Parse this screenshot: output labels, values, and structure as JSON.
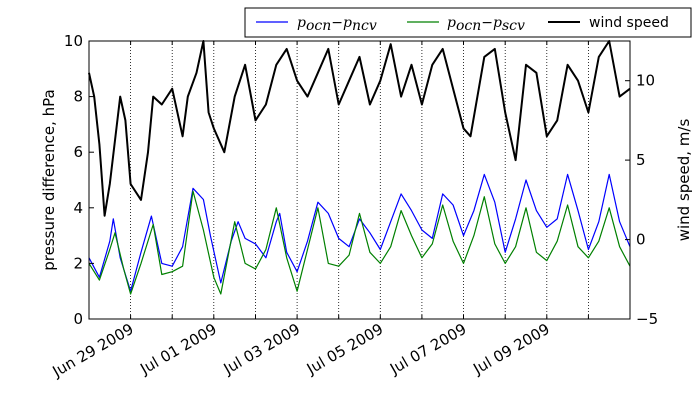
{
  "chart_data": {
    "type": "line",
    "xlim": [
      "2009-06-28T00:00",
      "2009-07-11T00:00"
    ],
    "x_ticks": [
      {
        "date": "2009-06-29",
        "label": "Jun 29 2009"
      },
      {
        "date": "2009-07-01",
        "label": "Jul 01 2009"
      },
      {
        "date": "2009-07-03",
        "label": "Jul 03 2009"
      },
      {
        "date": "2009-07-05",
        "label": "Jul 05 2009"
      },
      {
        "date": "2009-07-07",
        "label": "Jul 07 2009"
      },
      {
        "date": "2009-07-09",
        "label": "Jul 09 2009"
      }
    ],
    "x_gridlines_dates": [
      "2009-06-29",
      "2009-06-30",
      "2009-07-01",
      "2009-07-02",
      "2009-07-03",
      "2009-07-04",
      "2009-07-05",
      "2009-07-06",
      "2009-07-07",
      "2009-07-08",
      "2009-07-09",
      "2009-07-10"
    ],
    "left_axis": {
      "label": "pressure difference, hPa",
      "ylim": [
        0,
        10
      ],
      "ticks": [
        0,
        2,
        4,
        6,
        8,
        10
      ]
    },
    "right_axis": {
      "label": "wind speed, m/s",
      "ylim": [
        -5,
        12.5
      ],
      "ticks": [
        -5,
        0,
        5,
        10
      ]
    },
    "legend": {
      "placement": "top, above plot",
      "entries": [
        "p_ocn − p_ncv",
        "p_ocn − p_scv",
        "wind speed"
      ]
    },
    "series": [
      {
        "name": "p_ocn − p_ncv",
        "legend_main": "p",
        "legend_sub1": "ocn",
        "legend_minus": "−",
        "legend_sub2": "ncv",
        "axis": "left",
        "color": "#0000ff",
        "points": [
          [
            "2009-06-28T00:00",
            2.2
          ],
          [
            "2009-06-28T06:00",
            1.5
          ],
          [
            "2009-06-28T12:00",
            2.8
          ],
          [
            "2009-06-28T14:00",
            3.6
          ],
          [
            "2009-06-28T18:00",
            2.2
          ],
          [
            "2009-06-29T00:00",
            1.0
          ],
          [
            "2009-06-29T06:00",
            2.4
          ],
          [
            "2009-06-29T12:00",
            3.7
          ],
          [
            "2009-06-29T18:00",
            2.0
          ],
          [
            "2009-06-30T00:00",
            1.9
          ],
          [
            "2009-06-30T06:00",
            2.6
          ],
          [
            "2009-06-30T12:00",
            4.7
          ],
          [
            "2009-06-30T18:00",
            4.3
          ],
          [
            "2009-06-30T22:00",
            3.0
          ],
          [
            "2009-07-01T04:00",
            1.3
          ],
          [
            "2009-07-01T10:00",
            2.8
          ],
          [
            "2009-07-01T14:00",
            3.5
          ],
          [
            "2009-07-01T18:00",
            2.9
          ],
          [
            "2009-07-02T00:00",
            2.7
          ],
          [
            "2009-07-02T06:00",
            2.2
          ],
          [
            "2009-07-02T12:00",
            3.5
          ],
          [
            "2009-07-02T14:00",
            3.8
          ],
          [
            "2009-07-02T18:00",
            2.4
          ],
          [
            "2009-07-03T00:00",
            1.7
          ],
          [
            "2009-07-03T06:00",
            2.8
          ],
          [
            "2009-07-03T12:00",
            4.2
          ],
          [
            "2009-07-03T18:00",
            3.8
          ],
          [
            "2009-07-04T00:00",
            2.9
          ],
          [
            "2009-07-04T06:00",
            2.6
          ],
          [
            "2009-07-04T12:00",
            3.6
          ],
          [
            "2009-07-04T18:00",
            3.1
          ],
          [
            "2009-07-05T00:00",
            2.5
          ],
          [
            "2009-07-05T06:00",
            3.5
          ],
          [
            "2009-07-05T12:00",
            4.5
          ],
          [
            "2009-07-05T18:00",
            3.9
          ],
          [
            "2009-07-06T00:00",
            3.2
          ],
          [
            "2009-07-06T06:00",
            2.9
          ],
          [
            "2009-07-06T12:00",
            4.5
          ],
          [
            "2009-07-06T18:00",
            4.1
          ],
          [
            "2009-07-07T00:00",
            3.0
          ],
          [
            "2009-07-07T06:00",
            3.9
          ],
          [
            "2009-07-07T12:00",
            5.2
          ],
          [
            "2009-07-07T18:00",
            4.2
          ],
          [
            "2009-07-08T00:00",
            2.4
          ],
          [
            "2009-07-08T06:00",
            3.6
          ],
          [
            "2009-07-08T12:00",
            5.0
          ],
          [
            "2009-07-08T18:00",
            3.9
          ],
          [
            "2009-07-09T00:00",
            3.3
          ],
          [
            "2009-07-09T06:00",
            3.6
          ],
          [
            "2009-07-09T12:00",
            5.2
          ],
          [
            "2009-07-09T18:00",
            3.9
          ],
          [
            "2009-07-10T00:00",
            2.5
          ],
          [
            "2009-07-10T06:00",
            3.5
          ],
          [
            "2009-07-10T12:00",
            5.2
          ],
          [
            "2009-07-10T18:00",
            3.5
          ],
          [
            "2009-07-11T00:00",
            2.6
          ]
        ]
      },
      {
        "name": "p_ocn − p_scv",
        "legend_main": "p",
        "legend_sub1": "ocn",
        "legend_minus": "−",
        "legend_sub2": "scv",
        "axis": "left",
        "color": "#008000",
        "points": [
          [
            "2009-06-28T00:00",
            2.0
          ],
          [
            "2009-06-28T06:00",
            1.4
          ],
          [
            "2009-06-28T12:00",
            2.5
          ],
          [
            "2009-06-28T15:00",
            3.1
          ],
          [
            "2009-06-28T20:00",
            1.8
          ],
          [
            "2009-06-29T00:00",
            0.9
          ],
          [
            "2009-06-29T06:00",
            2.0
          ],
          [
            "2009-06-29T13:00",
            3.4
          ],
          [
            "2009-06-29T18:00",
            1.6
          ],
          [
            "2009-06-30T00:00",
            1.7
          ],
          [
            "2009-06-30T06:00",
            1.9
          ],
          [
            "2009-06-30T12:00",
            4.6
          ],
          [
            "2009-06-30T18:00",
            3.2
          ],
          [
            "2009-07-01T00:00",
            1.5
          ],
          [
            "2009-07-01T04:00",
            0.9
          ],
          [
            "2009-07-01T12:00",
            3.5
          ],
          [
            "2009-07-01T18:00",
            2.0
          ],
          [
            "2009-07-02T00:00",
            1.8
          ],
          [
            "2009-07-02T06:00",
            2.5
          ],
          [
            "2009-07-02T12:00",
            4.0
          ],
          [
            "2009-07-02T18:00",
            2.2
          ],
          [
            "2009-07-03T00:00",
            1.0
          ],
          [
            "2009-07-03T06:00",
            2.5
          ],
          [
            "2009-07-03T12:00",
            4.0
          ],
          [
            "2009-07-03T18:00",
            2.0
          ],
          [
            "2009-07-04T00:00",
            1.9
          ],
          [
            "2009-07-04T06:00",
            2.3
          ],
          [
            "2009-07-04T12:00",
            3.8
          ],
          [
            "2009-07-04T18:00",
            2.4
          ],
          [
            "2009-07-05T00:00",
            2.0
          ],
          [
            "2009-07-05T06:00",
            2.6
          ],
          [
            "2009-07-05T12:00",
            3.9
          ],
          [
            "2009-07-05T18:00",
            3.0
          ],
          [
            "2009-07-06T00:00",
            2.2
          ],
          [
            "2009-07-06T06:00",
            2.7
          ],
          [
            "2009-07-06T12:00",
            4.1
          ],
          [
            "2009-07-06T18:00",
            2.8
          ],
          [
            "2009-07-07T00:00",
            2.0
          ],
          [
            "2009-07-07T06:00",
            3.0
          ],
          [
            "2009-07-07T12:00",
            4.4
          ],
          [
            "2009-07-07T18:00",
            2.7
          ],
          [
            "2009-07-08T00:00",
            2.0
          ],
          [
            "2009-07-08T06:00",
            2.6
          ],
          [
            "2009-07-08T12:00",
            4.0
          ],
          [
            "2009-07-08T18:00",
            2.4
          ],
          [
            "2009-07-09T00:00",
            2.1
          ],
          [
            "2009-07-09T06:00",
            2.8
          ],
          [
            "2009-07-09T12:00",
            4.1
          ],
          [
            "2009-07-09T18:00",
            2.6
          ],
          [
            "2009-07-10T00:00",
            2.2
          ],
          [
            "2009-07-10T06:00",
            2.8
          ],
          [
            "2009-07-10T12:00",
            4.0
          ],
          [
            "2009-07-10T18:00",
            2.6
          ],
          [
            "2009-07-11T00:00",
            1.9
          ]
        ]
      },
      {
        "name": "wind speed",
        "axis": "right",
        "color": "#000000",
        "points": [
          [
            "2009-06-28T00:00",
            10.5
          ],
          [
            "2009-06-28T03:00",
            9.0
          ],
          [
            "2009-06-28T06:00",
            6.0
          ],
          [
            "2009-06-28T09:00",
            1.5
          ],
          [
            "2009-06-28T12:00",
            3.5
          ],
          [
            "2009-06-28T18:00",
            9.0
          ],
          [
            "2009-06-28T21:00",
            7.5
          ],
          [
            "2009-06-29T00:00",
            3.5
          ],
          [
            "2009-06-29T06:00",
            2.5
          ],
          [
            "2009-06-29T10:00",
            5.5
          ],
          [
            "2009-06-29T13:00",
            9.0
          ],
          [
            "2009-06-29T18:00",
            8.5
          ],
          [
            "2009-06-30T00:00",
            9.5
          ],
          [
            "2009-06-30T06:00",
            6.5
          ],
          [
            "2009-06-30T09:00",
            9.0
          ],
          [
            "2009-06-30T14:00",
            10.5
          ],
          [
            "2009-06-30T18:00",
            12.5
          ],
          [
            "2009-06-30T21:00",
            8.0
          ],
          [
            "2009-07-01T00:00",
            7.0
          ],
          [
            "2009-07-01T06:00",
            5.5
          ],
          [
            "2009-07-01T12:00",
            9.0
          ],
          [
            "2009-07-01T18:00",
            11.0
          ],
          [
            "2009-07-02T00:00",
            7.5
          ],
          [
            "2009-07-02T06:00",
            8.5
          ],
          [
            "2009-07-02T12:00",
            11.0
          ],
          [
            "2009-07-02T18:00",
            12.0
          ],
          [
            "2009-07-03T00:00",
            10.0
          ],
          [
            "2009-07-03T06:00",
            9.0
          ],
          [
            "2009-07-03T12:00",
            10.5
          ],
          [
            "2009-07-03T18:00",
            12.0
          ],
          [
            "2009-07-04T00:00",
            8.5
          ],
          [
            "2009-07-04T06:00",
            10.0
          ],
          [
            "2009-07-04T12:00",
            11.5
          ],
          [
            "2009-07-04T18:00",
            8.5
          ],
          [
            "2009-07-05T00:00",
            10.0
          ],
          [
            "2009-07-05T06:00",
            12.3
          ],
          [
            "2009-07-05T12:00",
            9.0
          ],
          [
            "2009-07-05T18:00",
            11.0
          ],
          [
            "2009-07-06T00:00",
            8.5
          ],
          [
            "2009-07-06T06:00",
            11.0
          ],
          [
            "2009-07-06T12:00",
            12.0
          ],
          [
            "2009-07-06T18:00",
            9.5
          ],
          [
            "2009-07-07T00:00",
            7.0
          ],
          [
            "2009-07-07T04:00",
            6.5
          ],
          [
            "2009-07-07T12:00",
            11.5
          ],
          [
            "2009-07-07T18:00",
            12.0
          ],
          [
            "2009-07-08T00:00",
            8.0
          ],
          [
            "2009-07-08T06:00",
            5.0
          ],
          [
            "2009-07-08T12:00",
            11.0
          ],
          [
            "2009-07-08T18:00",
            10.5
          ],
          [
            "2009-07-09T00:00",
            6.5
          ],
          [
            "2009-07-09T06:00",
            7.5
          ],
          [
            "2009-07-09T12:00",
            11.0
          ],
          [
            "2009-07-09T18:00",
            10.0
          ],
          [
            "2009-07-10T00:00",
            8.0
          ],
          [
            "2009-07-10T06:00",
            11.5
          ],
          [
            "2009-07-10T12:00",
            12.5
          ],
          [
            "2009-07-10T18:00",
            9.0
          ],
          [
            "2009-07-11T00:00",
            9.5
          ]
        ]
      }
    ]
  }
}
